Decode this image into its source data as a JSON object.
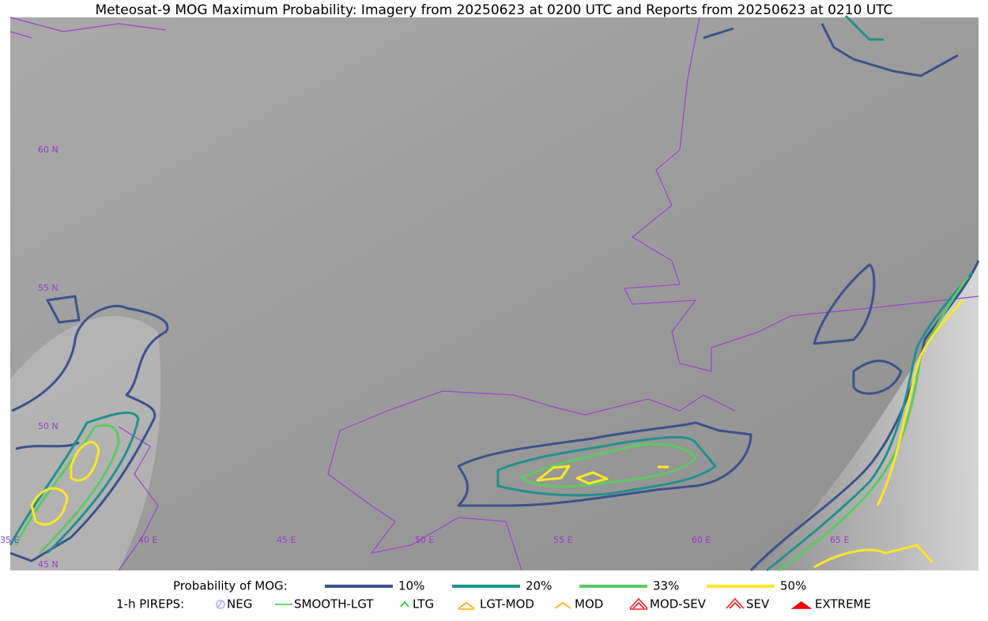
{
  "title": "Meteosat-9 MOG Maximum Probability: Imagery from 20250623 at 0200 UTC and Reports from 20250623 at 0210 UTC",
  "map": {
    "lat_labels": [
      "60 N",
      "55 N",
      "50 N",
      "45 N"
    ],
    "lon_labels": [
      "35 E",
      "40 E",
      "45 E",
      "50 E",
      "55 E",
      "60 E",
      "65 E"
    ]
  },
  "legend": {
    "probability": {
      "label": "Probability of MOG:",
      "items": [
        {
          "label": "10%",
          "color": "#3b528b"
        },
        {
          "label": "20%",
          "color": "#21918c"
        },
        {
          "label": "33%",
          "color": "#5ec962"
        },
        {
          "label": "50%",
          "color": "#fde725"
        }
      ]
    },
    "pireps": {
      "label": "1-h PIREPS:",
      "items": [
        {
          "label": "NEG",
          "color": "#b0b0ff"
        },
        {
          "label": "SMOOTH-LGT",
          "color": "#33cc33"
        },
        {
          "label": "LTG",
          "color": "#00dd00"
        },
        {
          "label": "LGT-MOD",
          "color": "#ffaa00"
        },
        {
          "label": "MOD",
          "color": "#ffaa00"
        },
        {
          "label": "MOD-SEV",
          "color": "#ff2020"
        },
        {
          "label": "SEV",
          "color": "#ff2020"
        },
        {
          "label": "EXTREME",
          "color": "#ee0000"
        }
      ]
    }
  }
}
